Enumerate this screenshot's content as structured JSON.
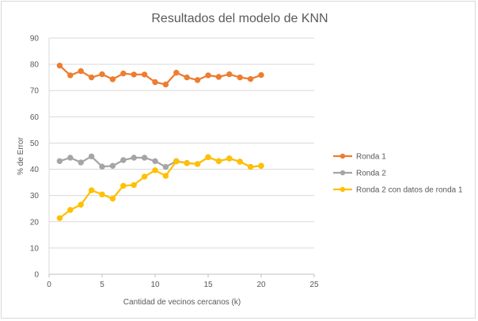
{
  "chart_data": {
    "type": "line",
    "title": "Resultados del modelo de KNN",
    "xlabel": "Cantidad de vecinos cercanos (k)",
    "ylabel": "% de Error",
    "xlim": [
      0,
      25
    ],
    "ylim": [
      0,
      90
    ],
    "x_ticks": [
      0,
      5,
      10,
      15,
      20,
      25
    ],
    "y_ticks": [
      0,
      10,
      20,
      30,
      40,
      50,
      60,
      70,
      80,
      90
    ],
    "grid": "horizontal",
    "legend_position": "right",
    "x": [
      1,
      2,
      3,
      4,
      5,
      6,
      7,
      8,
      9,
      10,
      11,
      12,
      13,
      14,
      15,
      16,
      17,
      18,
      19,
      20
    ],
    "series": [
      {
        "name": "Ronda 1",
        "color": "#ed7d31",
        "values": [
          79.5,
          75.8,
          77.4,
          75.0,
          76.2,
          74.3,
          76.5,
          76.1,
          76.1,
          73.2,
          72.3,
          76.8,
          75.0,
          74.0,
          75.8,
          75.2,
          76.2,
          75.0,
          74.4,
          75.9
        ]
      },
      {
        "name": "Ronda 2",
        "color": "#a5a5a5",
        "values": [
          43.1,
          44.4,
          42.6,
          44.9,
          41.0,
          41.3,
          43.5,
          44.4,
          44.4,
          43.1,
          40.9,
          43.1,
          42.4,
          42.0,
          44.6,
          43.1,
          44.1,
          42.9,
          40.9,
          41.3
        ]
      },
      {
        "name": "Ronda 2 con datos de ronda 1",
        "color": "#ffc000",
        "values": [
          21.4,
          24.5,
          26.5,
          32.0,
          30.4,
          28.8,
          33.7,
          34.0,
          37.2,
          39.6,
          37.5,
          43.0,
          42.3,
          42.0,
          44.6,
          43.1,
          44.1,
          42.9,
          40.9,
          41.3
        ]
      }
    ]
  }
}
